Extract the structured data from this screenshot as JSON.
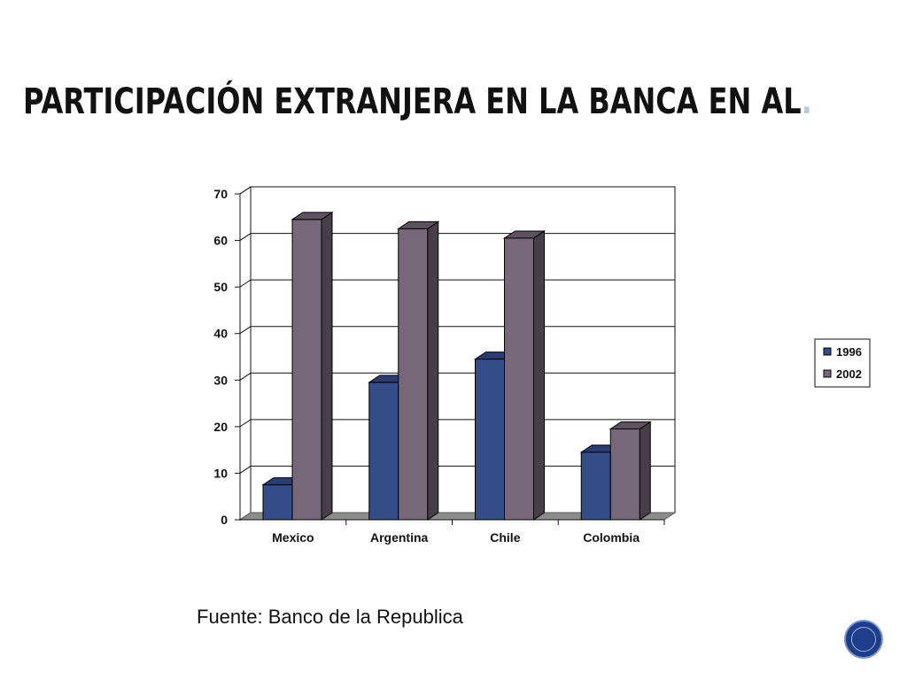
{
  "slide": {
    "title": "PARTICIPACIÓN EXTRANJERA EN LA BANCA EN AL",
    "title_dot": ".",
    "source": "Fuente: Banco de la Republica"
  },
  "chart_data": {
    "type": "bar",
    "style": "3d-clustered",
    "categories": [
      "Mexico",
      "Argentina",
      "Chile",
      "Colombia"
    ],
    "series": [
      {
        "name": "1996",
        "values": [
          7.5,
          29.5,
          34.5,
          14.5
        ],
        "color": "#344c87"
      },
      {
        "name": "2002",
        "values": [
          64.5,
          62.5,
          60.5,
          19.5
        ],
        "color": "#766779"
      }
    ],
    "title": "",
    "xlabel": "",
    "ylabel": "",
    "ylim": [
      0,
      70
    ],
    "yticks": [
      "0",
      "10",
      "20",
      "30",
      "40",
      "50",
      "60",
      "70"
    ],
    "grid": true,
    "legend": "right"
  },
  "colors": {
    "grid": "#111111",
    "floor": "#8c8c8c",
    "nav_button": "#1e3e8c"
  },
  "icons": {
    "nav": "circle-nav-icon"
  }
}
